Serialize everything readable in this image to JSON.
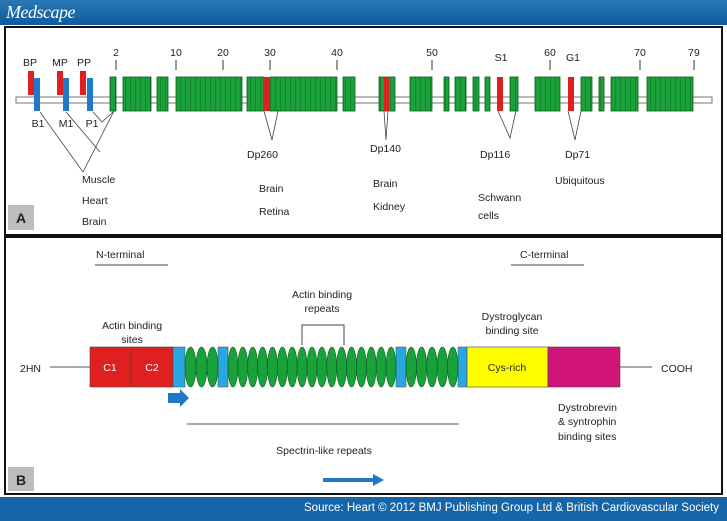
{
  "header": {
    "logo": "Medscape"
  },
  "footer": {
    "source": "Source: Heart © 2012 BMJ Publishing Group Ltd & British Cardiovascular Society"
  },
  "panel_a": {
    "badge": "A",
    "exon_ticks": [
      "2",
      "10",
      "20",
      "30",
      "40",
      "50",
      "60",
      "70",
      "79"
    ],
    "promoters_top": [
      "BP",
      "MP",
      "PP"
    ],
    "promoters_bottom": [
      "B1",
      "M1",
      "P1"
    ],
    "internal_promoters": [
      "S1",
      "G1"
    ],
    "products": [
      {
        "name": "Dp260",
        "tissues": [
          "Brain",
          "Retina"
        ]
      },
      {
        "name": "Dp140",
        "tissues": [
          "Brain",
          "Kidney"
        ]
      },
      {
        "name": "Dp116",
        "tissues": [
          "Schwann",
          "cells"
        ]
      },
      {
        "name": "Dp71",
        "tissues": [
          "Ubiquitous"
        ]
      }
    ],
    "full_length_tissues": [
      "Muscle",
      "Heart",
      "Brain"
    ],
    "colors": {
      "exon": "#1aa23a",
      "promoter_red": "#e02020",
      "promoter_blue": "#1f78c8"
    }
  },
  "panel_b": {
    "badge": "B",
    "n_terminal": "N-terminal",
    "c_terminal": "C-terminal",
    "nh2": "2HN",
    "cooh": "COOH",
    "c1": "C1",
    "c2": "C2",
    "cys_rich": "Cys-rich",
    "actin_sites": [
      "Actin binding",
      "sites"
    ],
    "actin_repeats": [
      "Actin binding",
      "repeats"
    ],
    "dystroglycan": [
      "Dystroglycan",
      "binding site"
    ],
    "dystrobrevin": [
      "Dystrobrevin",
      "& syntrophin",
      "binding sites"
    ],
    "spectrin": "Spectrin-like repeats",
    "colors": {
      "actin": "#e02020",
      "hinge": "#29a8e0",
      "repeat": "#1aa23a",
      "cys": "#ffff00",
      "cterm": "#d0147a"
    }
  }
}
